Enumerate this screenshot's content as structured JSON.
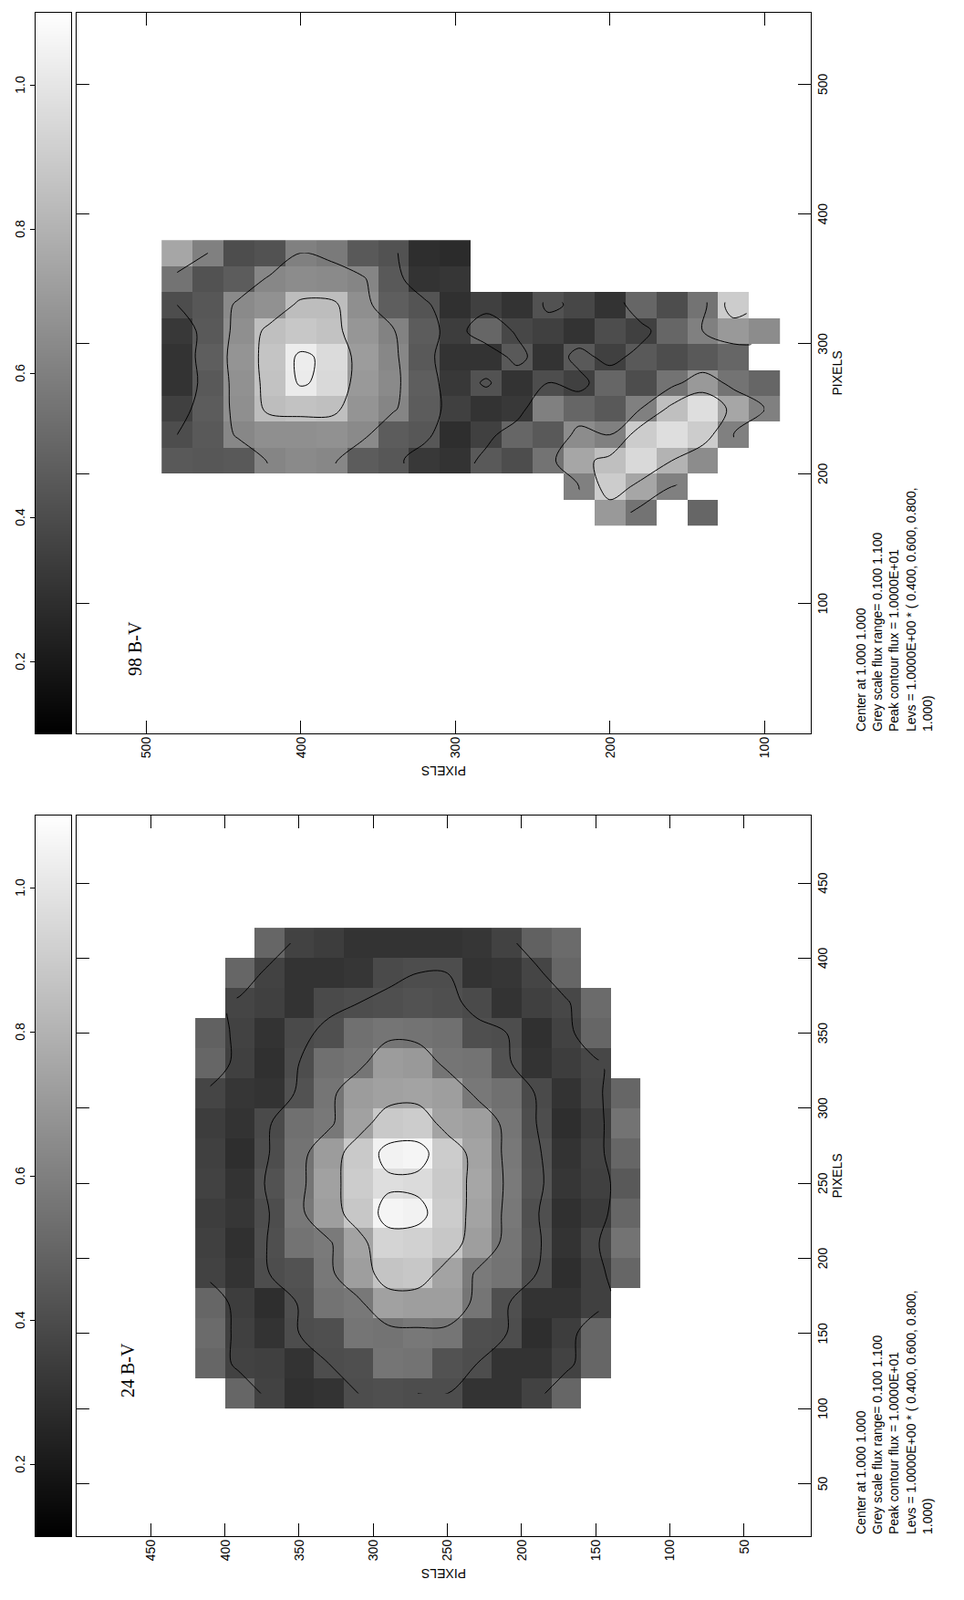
{
  "chart_data": [
    {
      "type": "heatmap",
      "title": "24 B-V",
      "x_label": "PIXELS",
      "y_label": "PIXELS",
      "xlim": [
        15,
        495
      ],
      "ylim": [
        5,
        500
      ],
      "xticks": [
        50,
        100,
        150,
        200,
        250,
        300,
        350,
        400,
        450
      ],
      "yticks": [
        50,
        100,
        150,
        200,
        250,
        300,
        350,
        400,
        450
      ],
      "x": [
        110,
        130,
        150,
        170,
        190,
        210,
        230,
        250,
        270,
        290,
        310,
        330,
        350,
        370,
        390,
        410
      ],
      "y": [
        130,
        150,
        170,
        190,
        210,
        230,
        250,
        270,
        290,
        310,
        330,
        350,
        370,
        390,
        410
      ],
      "z": [
        [
          null,
          null,
          null,
          null,
          0.5,
          0.55,
          0.5,
          0.45,
          0.5,
          0.55,
          0.5,
          null,
          null,
          null,
          null,
          null
        ],
        [
          null,
          0.5,
          0.5,
          0.35,
          0.35,
          0.38,
          0.33,
          0.35,
          0.36,
          0.34,
          0.37,
          0.38,
          0.5,
          0.52,
          null,
          null
        ],
        [
          0.5,
          0.36,
          0.34,
          0.3,
          0.28,
          0.3,
          0.29,
          0.31,
          0.3,
          0.28,
          0.3,
          0.34,
          0.36,
          0.38,
          0.5,
          0.52
        ],
        [
          0.36,
          0.3,
          0.28,
          0.3,
          0.4,
          0.42,
          0.41,
          0.43,
          0.42,
          0.4,
          0.39,
          0.3,
          0.29,
          0.35,
          0.37,
          0.48
        ],
        [
          0.3,
          0.3,
          0.4,
          0.41,
          0.55,
          0.56,
          0.57,
          0.58,
          0.57,
          0.56,
          0.54,
          0.42,
          0.4,
          0.3,
          0.31,
          0.36
        ],
        [
          0.3,
          0.4,
          0.41,
          0.56,
          0.58,
          0.72,
          0.74,
          0.75,
          0.74,
          0.72,
          0.57,
          0.55,
          0.41,
          0.39,
          0.3,
          0.31
        ],
        [
          0.4,
          0.42,
          0.56,
          0.72,
          0.74,
          0.88,
          0.9,
          0.89,
          0.9,
          0.74,
          0.72,
          0.56,
          0.54,
          0.41,
          0.4,
          0.3
        ],
        [
          0.4,
          0.55,
          0.57,
          0.72,
          0.88,
          0.92,
          1.05,
          0.96,
          1.06,
          0.9,
          0.74,
          0.7,
          0.55,
          0.42,
          0.4,
          0.3
        ],
        [
          0.41,
          0.56,
          0.55,
          0.73,
          0.87,
          0.93,
          1.06,
          0.97,
          1.05,
          0.89,
          0.73,
          0.71,
          0.56,
          0.41,
          0.39,
          0.3
        ],
        [
          0.4,
          0.41,
          0.56,
          0.57,
          0.72,
          0.74,
          0.88,
          0.9,
          0.89,
          0.73,
          0.71,
          0.56,
          0.54,
          0.4,
          0.31,
          0.3
        ],
        [
          0.3,
          0.4,
          0.41,
          0.55,
          0.57,
          0.58,
          0.72,
          0.73,
          0.71,
          0.57,
          0.56,
          0.54,
          0.41,
          0.39,
          0.3,
          0.34
        ],
        [
          0.29,
          0.3,
          0.4,
          0.41,
          0.42,
          0.55,
          0.57,
          0.56,
          0.55,
          0.54,
          0.42,
          0.4,
          0.39,
          0.3,
          0.3,
          0.36
        ],
        [
          0.36,
          0.35,
          0.3,
          0.28,
          0.4,
          0.41,
          0.4,
          0.42,
          0.4,
          0.39,
          0.3,
          0.29,
          0.3,
          0.35,
          0.36,
          0.5
        ],
        [
          0.5,
          0.36,
          0.35,
          0.34,
          0.3,
          0.29,
          0.31,
          0.3,
          0.28,
          0.3,
          0.31,
          0.35,
          0.36,
          0.37,
          0.5,
          null
        ],
        [
          null,
          0.5,
          0.52,
          0.5,
          0.36,
          0.35,
          0.34,
          0.36,
          0.35,
          0.34,
          0.37,
          0.5,
          0.48,
          null,
          null,
          null
        ]
      ],
      "contour_levels": [
        0.4,
        0.6,
        0.8,
        1.0
      ],
      "colorbar": {
        "range": [
          0.1,
          1.1
        ],
        "ticks": [
          0.2,
          0.4,
          0.6,
          0.8,
          {
            "value": 1.0,
            "label": "1.0"
          }
        ]
      },
      "caption": [
        "Center at 1.000 1.000",
        "Grey scale flux range= 0.100 1.100",
        "Peak contour flux = 1.0000E+01",
        "Levs = 1.0000E+00 * ( 0.400, 0.600, 0.800,",
        "1.000)"
      ]
    },
    {
      "type": "heatmap",
      "title": "98 B-V",
      "x_label": "PIXELS",
      "y_label": "PIXELS",
      "xlim": [
        0,
        555
      ],
      "ylim": [
        70,
        545
      ],
      "xticks": [
        100,
        200,
        300,
        400,
        500
      ],
      "yticks": [
        100,
        200,
        300,
        400,
        500
      ],
      "x": [
        170,
        190,
        210,
        230,
        250,
        270,
        290,
        310,
        330,
        350,
        370
      ],
      "y": [
        100,
        120,
        140,
        160,
        180,
        200,
        220,
        240,
        260,
        280,
        300,
        320,
        340,
        360,
        380,
        400,
        420,
        440,
        460,
        480
      ],
      "z": [
        [
          null,
          null,
          null,
          null,
          0.6,
          0.5,
          null,
          0.65,
          null,
          null,
          null
        ],
        [
          null,
          null,
          null,
          0.6,
          0.75,
          0.55,
          0.5,
          0.7,
          0.9,
          null,
          null
        ],
        [
          0.5,
          null,
          0.65,
          0.9,
          0.97,
          0.7,
          0.45,
          0.6,
          0.55,
          null,
          null
        ],
        [
          null,
          0.6,
          0.8,
          0.97,
          0.85,
          0.55,
          0.4,
          0.5,
          0.4,
          null,
          null
        ],
        [
          0.55,
          0.75,
          0.95,
          0.9,
          0.6,
          0.4,
          0.45,
          0.35,
          0.5,
          null,
          null
        ],
        [
          0.7,
          0.9,
          0.85,
          0.6,
          0.45,
          0.5,
          0.35,
          0.4,
          0.3,
          null,
          null
        ],
        [
          null,
          0.6,
          0.75,
          0.65,
          0.5,
          0.35,
          0.45,
          0.3,
          0.38,
          null,
          null
        ],
        [
          null,
          null,
          0.55,
          0.45,
          0.6,
          0.4,
          0.3,
          0.35,
          0.42,
          null,
          null
        ],
        [
          null,
          null,
          0.4,
          0.5,
          0.32,
          0.3,
          0.45,
          0.38,
          0.3,
          null,
          null
        ],
        [
          null,
          null,
          0.45,
          0.35,
          0.3,
          0.42,
          0.3,
          0.5,
          0.35,
          null,
          null
        ],
        [
          null,
          null,
          0.3,
          0.28,
          0.35,
          0.32,
          0.3,
          0.34,
          0.29,
          0.31,
          0.27
        ],
        [
          null,
          null,
          0.32,
          0.44,
          0.46,
          0.47,
          0.45,
          0.46,
          0.43,
          0.3,
          0.28
        ],
        [
          null,
          null,
          0.44,
          0.46,
          0.62,
          0.64,
          0.63,
          0.61,
          0.47,
          0.45,
          0.42
        ],
        [
          null,
          null,
          0.46,
          0.64,
          0.68,
          0.7,
          0.71,
          0.69,
          0.66,
          0.62,
          0.45
        ],
        [
          null,
          null,
          0.63,
          0.67,
          0.85,
          0.95,
          0.96,
          0.86,
          0.84,
          0.64,
          0.58
        ],
        [
          null,
          null,
          0.64,
          0.66,
          0.86,
          1.02,
          1.03,
          0.88,
          0.84,
          0.65,
          0.6
        ],
        [
          null,
          null,
          0.62,
          0.66,
          0.84,
          0.86,
          0.87,
          0.85,
          0.67,
          0.63,
          0.42
        ],
        [
          null,
          null,
          0.45,
          0.63,
          0.66,
          0.67,
          0.68,
          0.66,
          0.64,
          0.46,
          0.4
        ],
        [
          null,
          null,
          0.44,
          0.45,
          0.46,
          0.45,
          0.47,
          0.45,
          0.44,
          0.42,
          0.6
        ],
        [
          null,
          null,
          0.45,
          0.4,
          0.35,
          0.3,
          0.3,
          0.32,
          0.4,
          0.55,
          0.75
        ]
      ],
      "contour_levels": [
        0.4,
        0.6,
        0.8,
        1.0
      ],
      "colorbar": {
        "range": [
          0.1,
          1.1
        ],
        "ticks": [
          0.2,
          0.4,
          0.6,
          0.8,
          {
            "value": 1.0,
            "label": "1.0"
          }
        ]
      },
      "caption": [
        "Center at 1.000 1.000",
        "Grey scale flux range= 0.100 1.100",
        "Peak contour flux = 1.0000E+01",
        "Levs = 1.0000E+00 * ( 0.400, 0.600, 0.800,",
        "1.000)"
      ]
    }
  ]
}
